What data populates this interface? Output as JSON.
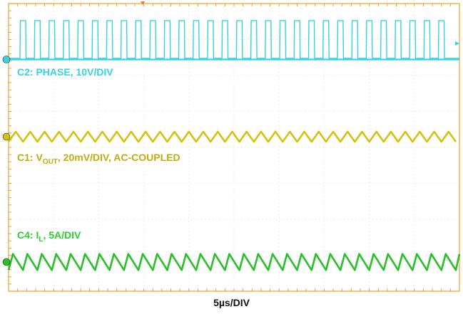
{
  "chart_data": {
    "type": "line",
    "title": "",
    "xlabel": "5µs/DIV",
    "ylabel": "",
    "x_range_us": [
      0,
      50
    ],
    "grid": true,
    "series": [
      {
        "name": "C2: PHASE, 10V/DIV",
        "label_prefix": "C2: PHASE, 10V/DIV",
        "color": "#36d3e0",
        "waveform": "pulse",
        "period_us": 1.6,
        "pulse_count": 30,
        "amplitude_div": 1.05
      },
      {
        "name": "C1: VOUT, 20mV/DIV, AC-COUPLED",
        "label_prefix": "C1: V",
        "label_sub": "OUT",
        "label_suffix": ", 20mV/DIV, AC-COUPLED",
        "color": "#d4c20f",
        "waveform": "triangle",
        "period_us": 1.6,
        "amplitude_div": 0.28
      },
      {
        "name": "C4: IL, 5A/DIV",
        "label_prefix": "C4: I",
        "label_sub": "L",
        "label_suffix": ", 5A/DIV",
        "color": "#2bbf2b",
        "waveform": "sawtooth",
        "period_us": 1.6,
        "amplitude_div": 0.45
      }
    ],
    "grid_color": "#f0a02a",
    "marker_color": "#ff6a3d"
  }
}
